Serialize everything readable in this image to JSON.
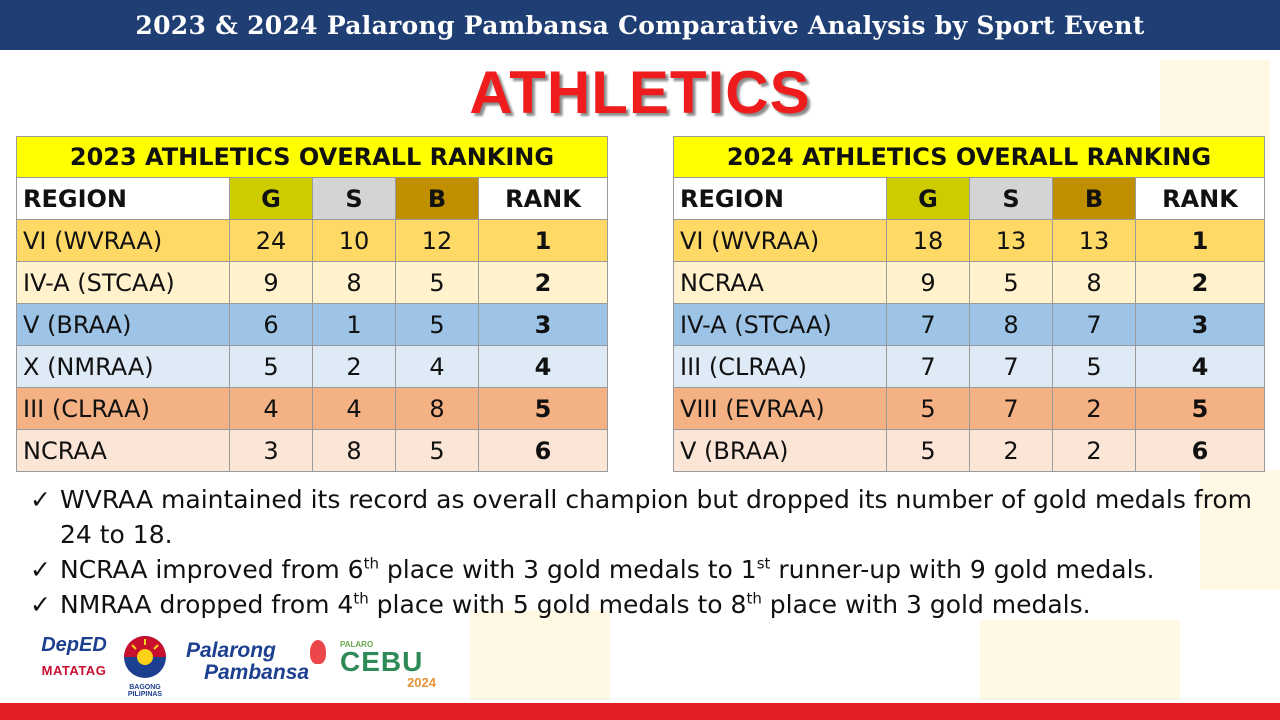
{
  "header": {
    "banner": "2023 & 2024 Palarong Pambansa Comparative Analysis by Sport Event",
    "sport": "ATHLETICS"
  },
  "colors": {
    "banner_bg": "#1f3f74",
    "title_red": "#ee1c1c",
    "table_title_bg": "#ffff00",
    "gold": "#cccc00",
    "silver": "#d4d4d4",
    "bronze": "#bf8f00",
    "bottom_bar": "#e31e24"
  },
  "columns": {
    "region": "REGION",
    "g": "G",
    "s": "S",
    "b": "B",
    "rank": "RANK"
  },
  "table_2023": {
    "title": "2023 ATHLETICS OVERALL RANKING",
    "rows": [
      {
        "region": "VI (WVRAA)",
        "g": "24",
        "s": "10",
        "b": "12",
        "rank": "1"
      },
      {
        "region": "IV-A (STCAA)",
        "g": "9",
        "s": "8",
        "b": "5",
        "rank": "2"
      },
      {
        "region": "V (BRAA)",
        "g": "6",
        "s": "1",
        "b": "5",
        "rank": "3"
      },
      {
        "region": "X (NMRAA)",
        "g": "5",
        "s": "2",
        "b": "4",
        "rank": "4"
      },
      {
        "region": "III (CLRAA)",
        "g": "4",
        "s": "4",
        "b": "8",
        "rank": "5"
      },
      {
        "region": "NCRAA",
        "g": "3",
        "s": "8",
        "b": "5",
        "rank": "6"
      }
    ]
  },
  "table_2024": {
    "title": "2024 ATHLETICS OVERALL RANKING",
    "rows": [
      {
        "region": "VI (WVRAA)",
        "g": "18",
        "s": "13",
        "b": "13",
        "rank": "1"
      },
      {
        "region": "NCRAA",
        "g": "9",
        "s": "5",
        "b": "8",
        "rank": "2"
      },
      {
        "region": "IV-A (STCAA)",
        "g": "7",
        "s": "8",
        "b": "7",
        "rank": "3"
      },
      {
        "region": "III (CLRAA)",
        "g": "7",
        "s": "7",
        "b": "5",
        "rank": "4"
      },
      {
        "region": "VIII (EVRAA)",
        "g": "5",
        "s": "7",
        "b": "2",
        "rank": "5"
      },
      {
        "region": "V (BRAA)",
        "g": "5",
        "s": "2",
        "b": "2",
        "rank": "6"
      }
    ]
  },
  "notes": {
    "check": "✓",
    "n1": "WVRAA maintained its record as overall champion but dropped its number of gold medals from 24 to 18.",
    "n2": {
      "a": "NCRAA improved from 6",
      "sup1": "th",
      "b": " place with 3 gold medals to 1",
      "sup2": "st",
      "c": " runner-up with 9 gold medals."
    },
    "n3": {
      "a": "NMRAA dropped from 4",
      "sup1": "th",
      "b": " place with 5 gold medals to 8",
      "sup2": "th",
      "c": " place with 3 gold medals."
    }
  },
  "logos": {
    "deped_line1": "DepED",
    "deped_line2": "MATATAG",
    "bagong_pilipinas": "BAGONG PILIPINAS",
    "palarong_line1": "Palarong",
    "palarong_line2": "Pambansa",
    "cebu_top": "PALARO",
    "cebu_main": "CEBU",
    "cebu_year": "2024"
  }
}
